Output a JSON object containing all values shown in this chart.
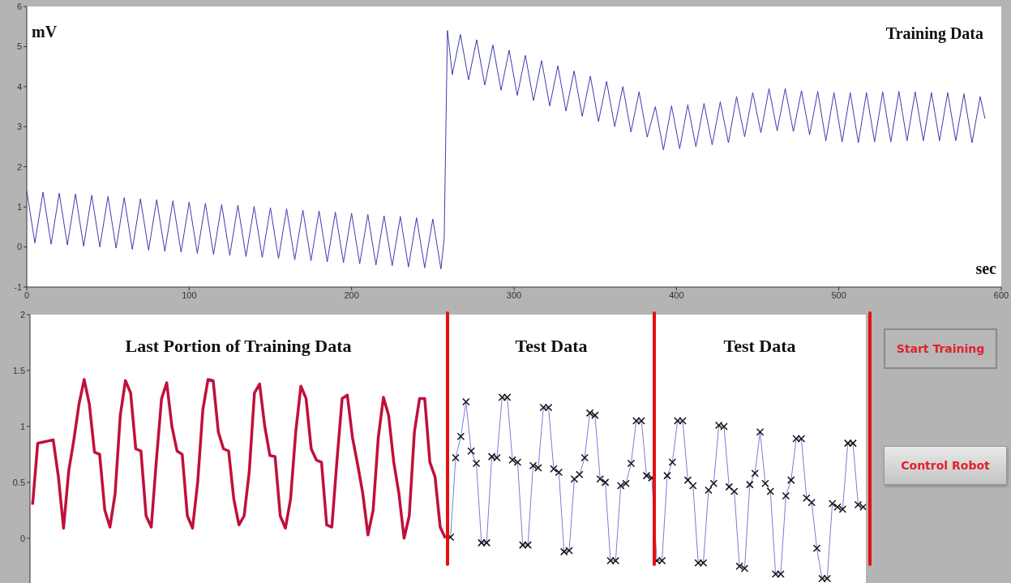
{
  "chart_data": [
    {
      "type": "line",
      "title": "Training Data",
      "xlabel": "sec",
      "ylabel": "mV",
      "xlim": [
        0,
        600
      ],
      "xticks": [
        0,
        100,
        200,
        300,
        400,
        500,
        600
      ],
      "ylim": [
        -1,
        6
      ],
      "yticks": [
        -1,
        0,
        1,
        2,
        3,
        4,
        5,
        6
      ],
      "grid": false,
      "marker": "none",
      "line_style": "solid",
      "series": [
        {
          "color": "#3b3bb0",
          "x": [
            0,
            5,
            10,
            15,
            20,
            25,
            30,
            35,
            40,
            45,
            50,
            55,
            60,
            65,
            70,
            75,
            80,
            85,
            90,
            95,
            100,
            105,
            110,
            115,
            120,
            125,
            130,
            135,
            140,
            145,
            150,
            155,
            160,
            165,
            170,
            175,
            180,
            185,
            190,
            195,
            200,
            205,
            210,
            215,
            220,
            225,
            230,
            235,
            240,
            245,
            250,
            255,
            257,
            259,
            262,
            267,
            272,
            277,
            282,
            287,
            292,
            297,
            302,
            307,
            312,
            317,
            322,
            327,
            332,
            337,
            342,
            347,
            352,
            357,
            362,
            367,
            372,
            377,
            382,
            387,
            392,
            397,
            402,
            407,
            412,
            417,
            422,
            427,
            432,
            437,
            442,
            447,
            452,
            457,
            462,
            467,
            472,
            477,
            482,
            487,
            492,
            497,
            502,
            507,
            512,
            517,
            522,
            527,
            532,
            537,
            542,
            547,
            552,
            557,
            562,
            567,
            572,
            577,
            582,
            587,
            590
          ],
          "values": [
            1.4,
            0.1,
            1.37,
            0.07,
            1.34,
            0.05,
            1.32,
            0.02,
            1.29,
            0.0,
            1.26,
            -0.03,
            1.23,
            -0.06,
            1.2,
            -0.08,
            1.18,
            -0.11,
            1.15,
            -0.13,
            1.12,
            -0.16,
            1.09,
            -0.19,
            1.06,
            -0.21,
            1.04,
            -0.24,
            1.01,
            -0.26,
            0.98,
            -0.29,
            0.95,
            -0.32,
            0.92,
            -0.34,
            0.9,
            -0.37,
            0.87,
            -0.39,
            0.84,
            -0.42,
            0.81,
            -0.45,
            0.78,
            -0.47,
            0.76,
            -0.5,
            0.73,
            -0.52,
            0.7,
            -0.55,
            0.2,
            5.4,
            4.3,
            5.3,
            4.17,
            5.17,
            4.04,
            5.04,
            3.91,
            4.91,
            3.78,
            4.78,
            3.65,
            4.65,
            3.52,
            4.52,
            3.39,
            4.39,
            3.26,
            4.26,
            3.13,
            4.13,
            3.0,
            4.0,
            2.87,
            3.87,
            2.74,
            3.5,
            2.42,
            3.52,
            2.45,
            3.55,
            2.5,
            3.58,
            2.55,
            3.62,
            2.6,
            3.75,
            2.75,
            3.85,
            2.85,
            3.95,
            2.9,
            3.95,
            2.88,
            3.9,
            2.8,
            3.88,
            2.65,
            3.85,
            2.62,
            3.85,
            2.6,
            3.85,
            2.62,
            3.87,
            2.62,
            3.88,
            2.65,
            3.87,
            2.65,
            3.85,
            2.65,
            3.85,
            2.65,
            3.82,
            2.6,
            3.75,
            3.2
          ]
        }
      ]
    },
    {
      "type": "line",
      "annotations": [
        "Last Portion of Training Data",
        "Test Data",
        "Test Data"
      ],
      "categories": [
        null,
        null,
        null,
        null,
        null,
        null,
        null,
        null,
        null,
        null,
        null,
        null,
        null,
        null,
        null,
        null,
        null,
        null,
        null,
        null,
        null,
        null,
        null,
        null,
        null,
        null,
        null,
        null,
        null,
        null,
        null,
        null,
        null,
        null,
        null,
        null,
        null,
        null,
        null,
        null,
        null,
        null,
        null,
        null,
        null,
        null,
        null,
        null,
        null,
        null,
        null,
        null,
        null,
        null,
        null,
        null,
        null,
        null,
        null,
        null,
        null,
        null,
        null,
        null,
        null,
        null,
        null,
        null,
        null,
        null,
        null,
        null,
        null,
        null,
        null,
        null,
        null,
        null,
        null,
        null,
        null,
        null,
        null,
        null,
        null,
        null,
        null,
        null,
        null,
        null,
        null,
        null,
        null,
        null,
        null,
        null,
        null,
        null,
        null,
        null,
        null,
        null,
        null,
        null,
        null,
        null,
        null,
        null,
        null,
        null,
        null,
        null,
        null,
        null,
        null,
        null,
        null,
        null,
        null,
        null,
        null,
        null,
        null,
        null,
        null,
        null,
        null,
        null,
        null,
        null,
        null,
        null,
        null,
        null,
        null,
        null,
        null,
        null,
        null,
        null,
        null,
        null,
        null,
        null,
        null,
        null,
        null,
        null,
        null,
        null,
        null,
        null,
        null,
        null,
        null,
        null,
        null,
        null,
        null,
        null,
        null,
        null
      ],
      "ylim": [
        -0.4,
        2
      ],
      "yticks": [
        0,
        0.5,
        1,
        1.5,
        2
      ],
      "grid": false,
      "tick_labels": "y",
      "line_style": "solid",
      "series": [
        {
          "color": "#c0103c",
          "marker": "none",
          "values": [
            0.3,
            0.85,
            0.86,
            0.87,
            0.88,
            0.55,
            0.09,
            0.6,
            0.88,
            1.2,
            1.42,
            1.2,
            0.77,
            0.75,
            0.25,
            0.1,
            0.4,
            1.1,
            1.41,
            1.3,
            0.8,
            0.78,
            0.2,
            0.1,
            0.7,
            1.25,
            1.39,
            1.0,
            0.78,
            0.75,
            0.2,
            0.09,
            0.5,
            1.15,
            1.42,
            1.41,
            0.95,
            0.8,
            0.78,
            0.35,
            0.12,
            0.2,
            0.6,
            1.3,
            1.38,
            1.0,
            0.74,
            0.73,
            0.2,
            0.09,
            0.35,
            0.95,
            1.36,
            1.25,
            0.8,
            0.7,
            0.68,
            0.12,
            0.1,
            0.7,
            1.25,
            1.28,
            0.9,
            0.66,
            0.4,
            0.03,
            0.25,
            0.9,
            1.26,
            1.1,
            0.68,
            0.4,
            0.0,
            0.2,
            0.95,
            1.25,
            1.25,
            0.68,
            0.55,
            0.1,
            0.0,
            null,
            null,
            null,
            null,
            null,
            null,
            null,
            null,
            null,
            null,
            null,
            null,
            null,
            null,
            null,
            null,
            null,
            null,
            null,
            null,
            null,
            null,
            null,
            null,
            null,
            null,
            null,
            null,
            null,
            null,
            null,
            null,
            null,
            null,
            null,
            null,
            null,
            null,
            null,
            null,
            null,
            null,
            null,
            null,
            null,
            null,
            null,
            null,
            null,
            null,
            null,
            null,
            null,
            null,
            null,
            null,
            null,
            null,
            null,
            null,
            null,
            null,
            null,
            null,
            null,
            null,
            null,
            null,
            null,
            null,
            null,
            null,
            null,
            null,
            null,
            null,
            null,
            null,
            null,
            null,
            null
          ]
        },
        {
          "color": "#7b7bd8",
          "marker": "cross",
          "values": [
            null,
            null,
            null,
            null,
            null,
            null,
            null,
            null,
            null,
            null,
            null,
            null,
            null,
            null,
            null,
            null,
            null,
            null,
            null,
            null,
            null,
            null,
            null,
            null,
            null,
            null,
            null,
            null,
            null,
            null,
            null,
            null,
            null,
            null,
            null,
            null,
            null,
            null,
            null,
            null,
            null,
            null,
            null,
            null,
            null,
            null,
            null,
            null,
            null,
            null,
            null,
            null,
            null,
            null,
            null,
            null,
            null,
            null,
            null,
            null,
            null,
            null,
            null,
            null,
            null,
            null,
            null,
            null,
            null,
            null,
            null,
            null,
            null,
            null,
            null,
            null,
            null,
            null,
            null,
            null,
            null,
            0.01,
            0.72,
            0.91,
            1.22,
            0.78,
            0.67,
            -0.04,
            -0.04,
            0.73,
            0.72,
            1.26,
            1.26,
            0.7,
            0.68,
            -0.06,
            -0.06,
            0.65,
            0.63,
            1.17,
            1.17,
            0.62,
            0.59,
            -0.12,
            -0.11,
            0.53,
            0.57,
            0.72,
            1.12,
            1.1,
            0.53,
            0.5,
            -0.2,
            -0.2,
            0.47,
            0.49,
            0.67,
            1.05,
            1.05,
            0.56,
            0.54,
            -0.2,
            -0.2,
            0.56,
            0.68,
            1.05,
            1.05,
            0.52,
            0.47,
            -0.22,
            -0.22,
            0.43,
            0.49,
            1.01,
            1.0,
            0.46,
            0.42,
            -0.25,
            -0.27,
            0.48,
            0.58,
            0.95,
            0.49,
            0.42,
            -0.32,
            -0.32,
            0.38,
            0.52,
            0.89,
            0.89,
            0.36,
            0.32,
            -0.09,
            -0.36,
            -0.36,
            0.31,
            0.28,
            0.26,
            0.85,
            0.85,
            0.3,
            0.28
          ]
        }
      ]
    },
    {
      "type": "other",
      "annotations": [
        "Start Training",
        "Control Robot"
      ]
    }
  ]
}
